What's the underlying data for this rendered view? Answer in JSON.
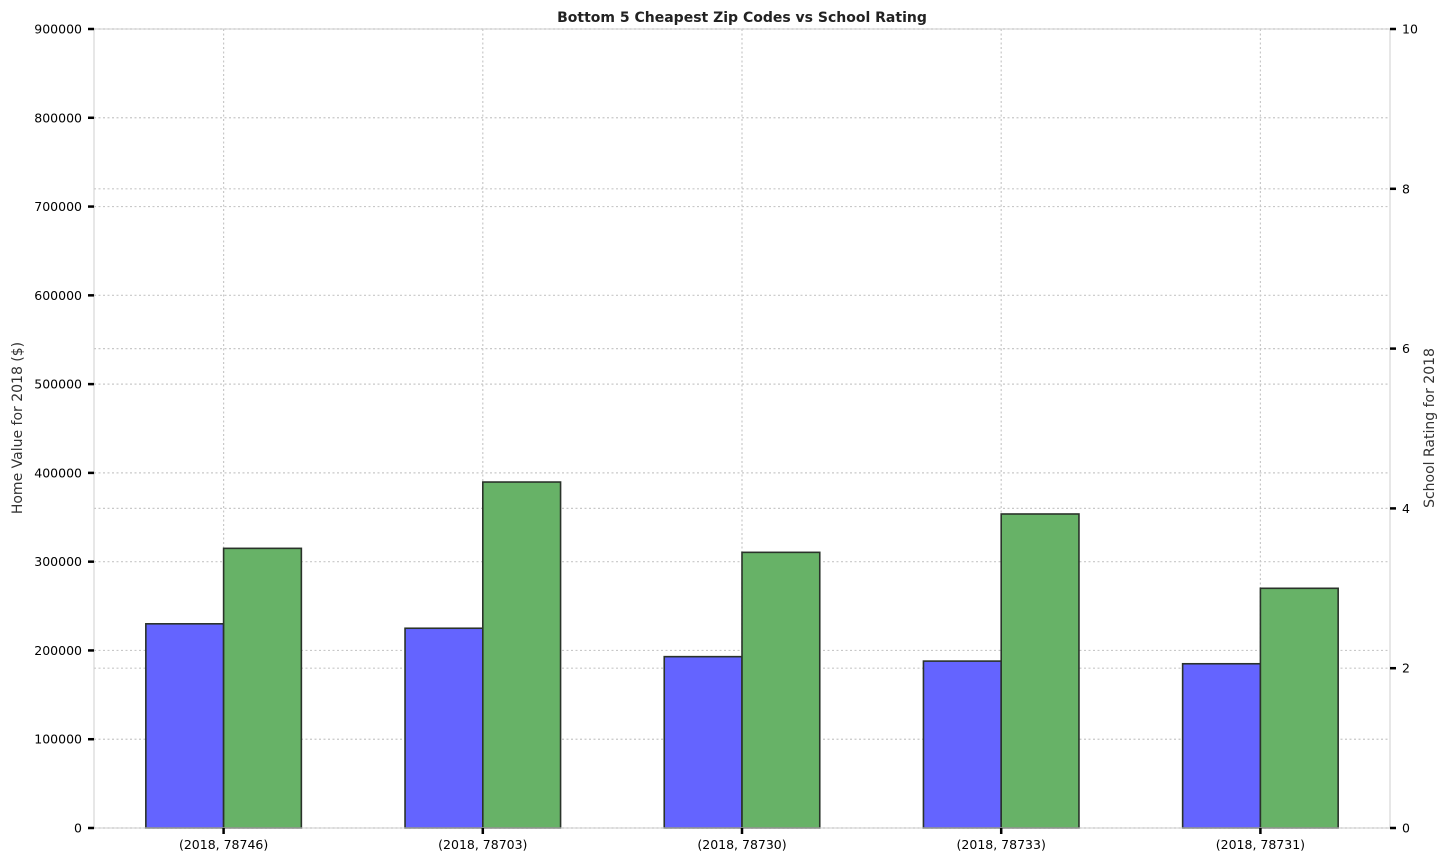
{
  "chart_data": {
    "type": "bar",
    "title": "Bottom 5 Cheapest Zip Codes vs School Rating",
    "xlabel": "",
    "categories": [
      "(2018, 78746)",
      "(2018, 78703)",
      "(2018, 78730)",
      "(2018, 78733)",
      "(2018, 78731)"
    ],
    "y_left": {
      "label": "Home Value for 2018 ($)",
      "ylim": [
        0,
        900000
      ],
      "ticks": [
        0,
        100000,
        200000,
        300000,
        400000,
        500000,
        600000,
        700000,
        800000,
        900000
      ]
    },
    "y_right": {
      "label": "School Rating for 2018",
      "ylim": [
        0,
        10
      ],
      "ticks": [
        0,
        2,
        4,
        6,
        8,
        10
      ]
    },
    "series": [
      {
        "axis": "left",
        "values": [
          230000,
          225000,
          193000,
          188000,
          185000
        ],
        "color": "#6464ff"
      },
      {
        "axis": "right",
        "values": [
          3.5,
          4.33,
          3.45,
          3.93,
          3.0
        ],
        "color": "#67b267"
      }
    ],
    "grid": true,
    "legend": "none"
  }
}
